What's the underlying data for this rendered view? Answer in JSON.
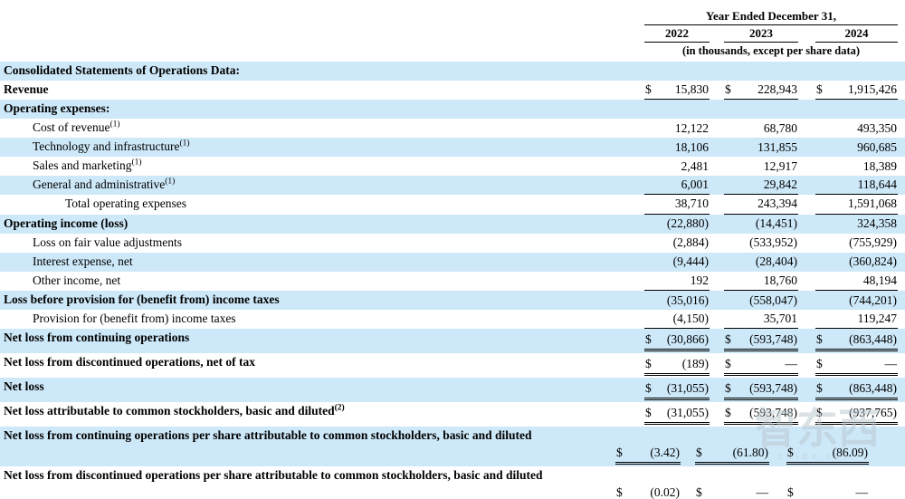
{
  "header": {
    "period_label": "Year Ended December 31,",
    "years": [
      "2022",
      "2023",
      "2024"
    ],
    "units_note": "(in thousands, except per share data)"
  },
  "colors": {
    "row_shade": "#cde8f8",
    "text": "#000000"
  },
  "watermark": {
    "text": "智东西",
    "subtext": "zhidx.com"
  },
  "table": {
    "rows": [
      {
        "label": "Consolidated Statements of Operations Data:",
        "sup": "",
        "indent": 0,
        "bold": true,
        "shaded": true,
        "twoline": false,
        "rule": "",
        "cells": [
          {
            "currency": "",
            "amount": ""
          },
          {
            "currency": "",
            "amount": ""
          },
          {
            "currency": "",
            "amount": ""
          }
        ]
      },
      {
        "label": "Revenue",
        "sup": "",
        "indent": 0,
        "bold": true,
        "shaded": false,
        "twoline": false,
        "rule": "single",
        "cells": [
          {
            "currency": "$",
            "amount": "15,830"
          },
          {
            "currency": "$",
            "amount": "228,943"
          },
          {
            "currency": "$",
            "amount": "1,915,426"
          }
        ]
      },
      {
        "label": "Operating expenses:",
        "sup": "",
        "indent": 0,
        "bold": true,
        "shaded": true,
        "twoline": false,
        "rule": "",
        "cells": [
          {
            "currency": "",
            "amount": ""
          },
          {
            "currency": "",
            "amount": ""
          },
          {
            "currency": "",
            "amount": ""
          }
        ]
      },
      {
        "label": "Cost of revenue",
        "sup": "(1)",
        "indent": 1,
        "bold": false,
        "shaded": false,
        "twoline": false,
        "rule": "",
        "cells": [
          {
            "currency": "",
            "amount": "12,122"
          },
          {
            "currency": "",
            "amount": "68,780"
          },
          {
            "currency": "",
            "amount": "493,350"
          }
        ]
      },
      {
        "label": "Technology and infrastructure",
        "sup": "(1)",
        "indent": 1,
        "bold": false,
        "shaded": true,
        "twoline": false,
        "rule": "",
        "cells": [
          {
            "currency": "",
            "amount": "18,106"
          },
          {
            "currency": "",
            "amount": "131,855"
          },
          {
            "currency": "",
            "amount": "960,685"
          }
        ]
      },
      {
        "label": "Sales and marketing",
        "sup": "(1)",
        "indent": 1,
        "bold": false,
        "shaded": false,
        "twoline": false,
        "rule": "",
        "cells": [
          {
            "currency": "",
            "amount": "2,481"
          },
          {
            "currency": "",
            "amount": "12,917"
          },
          {
            "currency": "",
            "amount": "18,389"
          }
        ]
      },
      {
        "label": "General and administrative",
        "sup": "(1)",
        "indent": 1,
        "bold": false,
        "shaded": true,
        "twoline": false,
        "rule": "single",
        "cells": [
          {
            "currency": "",
            "amount": "6,001"
          },
          {
            "currency": "",
            "amount": "29,842"
          },
          {
            "currency": "",
            "amount": "118,644"
          }
        ]
      },
      {
        "label": "Total operating expenses",
        "sup": "",
        "indent": 2,
        "bold": false,
        "shaded": false,
        "twoline": false,
        "rule": "single",
        "cells": [
          {
            "currency": "",
            "amount": "38,710"
          },
          {
            "currency": "",
            "amount": "243,394"
          },
          {
            "currency": "",
            "amount": "1,591,068"
          }
        ]
      },
      {
        "label": "Operating income (loss)",
        "sup": "",
        "indent": 0,
        "bold": true,
        "shaded": true,
        "twoline": false,
        "rule": "",
        "cells": [
          {
            "currency": "",
            "amount": "(22,880)"
          },
          {
            "currency": "",
            "amount": "(14,451)"
          },
          {
            "currency": "",
            "amount": "324,358"
          }
        ]
      },
      {
        "label": "Loss on fair value adjustments",
        "sup": "",
        "indent": 1,
        "bold": false,
        "shaded": false,
        "twoline": false,
        "rule": "",
        "cells": [
          {
            "currency": "",
            "amount": "(2,884)"
          },
          {
            "currency": "",
            "amount": "(533,952)"
          },
          {
            "currency": "",
            "amount": "(755,929)"
          }
        ]
      },
      {
        "label": "Interest expense, net",
        "sup": "",
        "indent": 1,
        "bold": false,
        "shaded": true,
        "twoline": false,
        "rule": "",
        "cells": [
          {
            "currency": "",
            "amount": "(9,444)"
          },
          {
            "currency": "",
            "amount": "(28,404)"
          },
          {
            "currency": "",
            "amount": "(360,824)"
          }
        ]
      },
      {
        "label": "Other income, net",
        "sup": "",
        "indent": 1,
        "bold": false,
        "shaded": false,
        "twoline": false,
        "rule": "single",
        "cells": [
          {
            "currency": "",
            "amount": "192"
          },
          {
            "currency": "",
            "amount": "18,760"
          },
          {
            "currency": "",
            "amount": "48,194"
          }
        ]
      },
      {
        "label": "Loss before provision for (benefit from) income taxes",
        "sup": "",
        "indent": 0,
        "bold": true,
        "shaded": true,
        "twoline": false,
        "rule": "",
        "cells": [
          {
            "currency": "",
            "amount": "(35,016)"
          },
          {
            "currency": "",
            "amount": "(558,047)"
          },
          {
            "currency": "",
            "amount": "(744,201)"
          }
        ]
      },
      {
        "label": "Provision for (benefit from) income taxes",
        "sup": "",
        "indent": 1,
        "bold": false,
        "shaded": false,
        "twoline": false,
        "rule": "single",
        "cells": [
          {
            "currency": "",
            "amount": "(4,150)"
          },
          {
            "currency": "",
            "amount": "35,701"
          },
          {
            "currency": "",
            "amount": "119,247"
          }
        ]
      },
      {
        "label": "Net loss from continuing operations",
        "sup": "",
        "indent": 0,
        "bold": true,
        "shaded": true,
        "twoline": false,
        "rule": "double",
        "cells": [
          {
            "currency": "$",
            "amount": "(30,866)"
          },
          {
            "currency": "$",
            "amount": "(593,748)"
          },
          {
            "currency": "$",
            "amount": "(863,448)"
          }
        ]
      },
      {
        "label": "Net loss from discontinued operations, net of tax",
        "sup": "",
        "indent": 0,
        "bold": true,
        "shaded": false,
        "twoline": false,
        "rule": "double",
        "cells": [
          {
            "currency": "$",
            "amount": "(189)"
          },
          {
            "currency": "$",
            "amount": "—"
          },
          {
            "currency": "$",
            "amount": "—"
          }
        ]
      },
      {
        "label": "Net loss",
        "sup": "",
        "indent": 0,
        "bold": true,
        "shaded": true,
        "twoline": false,
        "rule": "double",
        "cells": [
          {
            "currency": "$",
            "amount": "(31,055)"
          },
          {
            "currency": "$",
            "amount": "(593,748)"
          },
          {
            "currency": "$",
            "amount": "(863,448)"
          }
        ]
      },
      {
        "label": "Net loss attributable to common stockholders, basic and diluted",
        "sup": "(2)",
        "indent": 0,
        "bold": true,
        "shaded": false,
        "twoline": false,
        "rule": "double",
        "cells": [
          {
            "currency": "$",
            "amount": "(31,055)"
          },
          {
            "currency": "$",
            "amount": "(593,748)"
          },
          {
            "currency": "$",
            "amount": "(937,765)"
          }
        ]
      },
      {
        "label": "Net loss from continuing operations per share attributable to common stockholders, basic and diluted",
        "sup": "",
        "indent": 0,
        "bold": true,
        "shaded": true,
        "twoline": true,
        "rule": "double",
        "cells": [
          {
            "currency": "$",
            "amount": "(3.42)"
          },
          {
            "currency": "$",
            "amount": "(61.80)"
          },
          {
            "currency": "$",
            "amount": "(86.09)"
          }
        ]
      },
      {
        "label": "Net loss from discontinued operations per share attributable to common stockholders, basic and diluted",
        "sup": "",
        "indent": 0,
        "bold": true,
        "shaded": false,
        "twoline": true,
        "rule": "double",
        "cells": [
          {
            "currency": "$",
            "amount": "(0.02)"
          },
          {
            "currency": "$",
            "amount": "—"
          },
          {
            "currency": "$",
            "amount": "—"
          }
        ]
      }
    ]
  }
}
